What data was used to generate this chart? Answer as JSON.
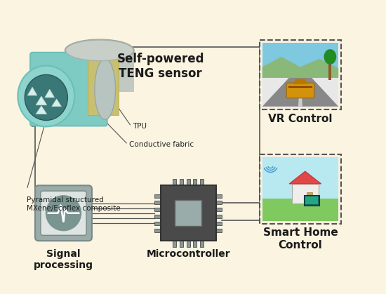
{
  "bg": "#faf4e1",
  "teng_label": "Self-powered\nTENG sensor",
  "tpu_label": "TPU",
  "fabric_label": "Conductive fabric",
  "pyramid_label": "Pyramidal structured\nMXene/Ecoflex composite",
  "signal_label": "Signal\nprocessing",
  "mcu_label": "Microcontroller",
  "vr_label": "VR Control",
  "home_label": "Smart Home\nControl",
  "teal_light": "#8dd4cc",
  "teal_mid": "#6bbfb8",
  "teal_body": "#7ecbc4",
  "gray_top": "#c0c4c0",
  "yellow_band": "#c8c070",
  "inner_dark": "#3a7878",
  "signal_outer": "#9aabaa",
  "signal_inner": "#8a9e9c",
  "signal_circle": "#7a9490",
  "mcu_body": "#4a4a4a",
  "mcu_die": "#9aacaa",
  "mcu_pin": "#8a9898",
  "line_color": "#555555",
  "label_color": "#1a1a1a"
}
